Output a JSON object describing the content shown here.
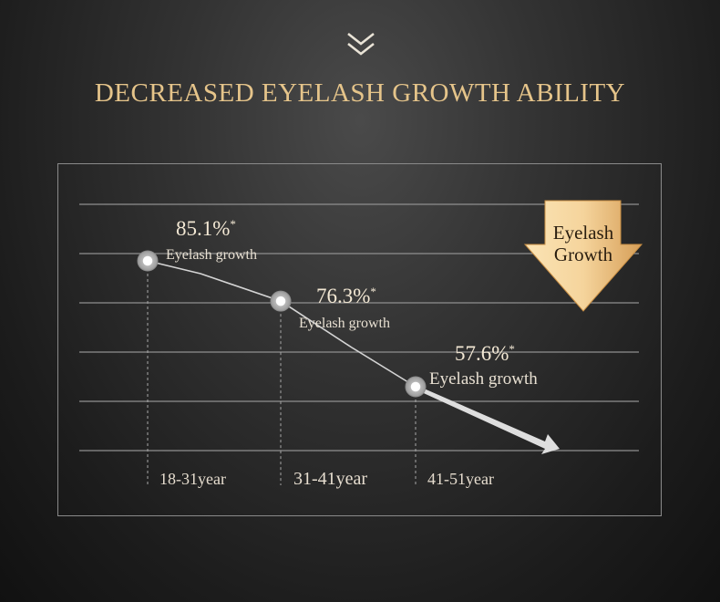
{
  "header": {
    "title": "DECREASED EYELASH GROWTH ABILITY",
    "chevron_icon": "double-chevron-down-icon"
  },
  "badge": {
    "line1": "Eyelash",
    "line2": "Growth",
    "icon": "down-arrow-icon"
  },
  "colors": {
    "title_gold": "#e5c48a",
    "value_text": "#f2e6d0",
    "grid_line": "#9a9a9a",
    "trend_line": "#d8d8d8",
    "arrow_gold_light": "#fbe7c2",
    "arrow_gold_dark": "#d9a25a"
  },
  "chart_data": {
    "type": "line",
    "title": "DECREASED EYELASH GROWTH ABILITY",
    "categories": [
      "18-31year",
      "31-41year",
      "41-51year"
    ],
    "series": [
      {
        "values": [
          85.1,
          76.3,
          57.6
        ],
        "unit": "%",
        "suffix": "*",
        "labels": [
          "Eyelash growth",
          "Eyelash growth",
          "Eyelash growth"
        ]
      }
    ],
    "value_labels": [
      "85.1%",
      "76.3%",
      "57.6%"
    ],
    "trend": "decreasing",
    "grid": true,
    "legend": "none"
  }
}
